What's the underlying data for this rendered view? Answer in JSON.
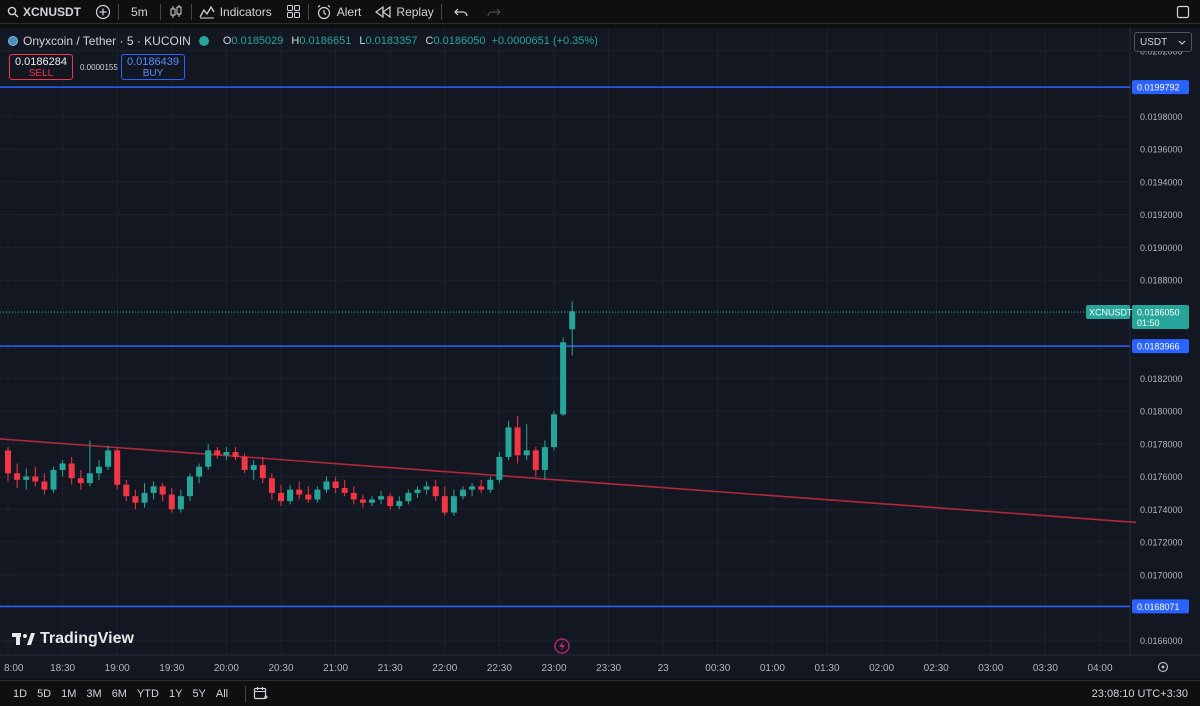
{
  "toolbar": {
    "symbol": "XCNUSDT",
    "interval": "5m",
    "indicators_label": "Indicators",
    "alert_label": "Alert",
    "replay_label": "Replay"
  },
  "legend": {
    "title": "Onyxcoin / Tether · 5 · KUCOIN",
    "open_key": "O",
    "open": "0.0185029",
    "high_key": "H",
    "high": "0.0186651",
    "low_key": "L",
    "low": "0.0183357",
    "close_key": "C",
    "close": "0.0186050",
    "change": "+0.0000651 (+0.35%)"
  },
  "trade": {
    "sell_price": "0.0186284",
    "sell_label": "SELL",
    "spread": "0.0000155",
    "buy_price": "0.0186439",
    "buy_label": "BUY"
  },
  "currency": {
    "selected": "USDT"
  },
  "brand": {
    "name": "TradingView"
  },
  "bottom": {
    "ranges": [
      "1D",
      "5D",
      "1M",
      "3M",
      "6M",
      "YTD",
      "1Y",
      "5Y",
      "All"
    ],
    "clock": "23:08:10 UTC+3:30"
  },
  "colors": {
    "up": "#26a69a",
    "down": "#f23645",
    "level": "#2962ff",
    "trend": "#b2283b",
    "bg": "#131722"
  },
  "chart_data": {
    "type": "candlestick",
    "symbol": "XCNUSDT",
    "y_ticks": [
      0.0166,
      0.0168,
      0.017,
      0.0172,
      0.0174,
      0.0176,
      0.0178,
      0.018,
      0.0182,
      0.0184,
      0.0186,
      0.0188,
      0.019,
      0.0192,
      0.0194,
      0.0196,
      0.0198,
      0.0202
    ],
    "y_tick_labels": [
      "0.0166000",
      "0.0168000",
      "0.0170000",
      "0.0172000",
      "0.0174000",
      "0.0176000",
      "0.0178000",
      "0.0180000",
      "0.0182000",
      "0.0184000",
      "0.0186000",
      "0.0188000",
      "0.0190000",
      "0.0192000",
      "0.0194000",
      "0.0196000",
      "0.0198000",
      "0.0202000"
    ],
    "ylim": [
      0.01651,
      0.02034
    ],
    "x_tick_labels": [
      "8:00",
      "18:30",
      "19:00",
      "19:30",
      "20:00",
      "20:30",
      "21:00",
      "21:30",
      "22:00",
      "22:30",
      "23:00",
      "23:30",
      "23",
      "00:30",
      "01:00",
      "01:30",
      "02:00",
      "02:30",
      "03:00",
      "03:30",
      "04:00"
    ],
    "x_tick_minutes": [
      0,
      30,
      60,
      90,
      120,
      150,
      180,
      210,
      240,
      270,
      300,
      330,
      360,
      390,
      420,
      450,
      480,
      510,
      540,
      570,
      600
    ],
    "horizontal_levels": [
      {
        "price": 0.0199792,
        "label": "0.0199792"
      },
      {
        "price": 0.0183966,
        "label": "0.0183966"
      },
      {
        "price": 0.0168071,
        "label": "0.0168071"
      }
    ],
    "current_price": {
      "symbol": "XCNUSDT",
      "price": 0.018605,
      "label": "0.0186050",
      "countdown": "01:50"
    },
    "trendline": {
      "from": {
        "minute": -5,
        "price": 0.01783
      },
      "to": {
        "minute": 620,
        "price": 0.01732
      }
    },
    "candles": [
      {
        "m": 0,
        "o": 0.01776,
        "h": 0.01778,
        "l": 0.01757,
        "c": 0.01762
      },
      {
        "m": 5,
        "o": 0.01762,
        "h": 0.01768,
        "l": 0.01753,
        "c": 0.01758
      },
      {
        "m": 10,
        "o": 0.01758,
        "h": 0.01765,
        "l": 0.01752,
        "c": 0.0176
      },
      {
        "m": 15,
        "o": 0.0176,
        "h": 0.01766,
        "l": 0.01754,
        "c": 0.01757
      },
      {
        "m": 20,
        "o": 0.01757,
        "h": 0.01762,
        "l": 0.01749,
        "c": 0.01752
      },
      {
        "m": 25,
        "o": 0.01752,
        "h": 0.01766,
        "l": 0.0175,
        "c": 0.01764
      },
      {
        "m": 30,
        "o": 0.01764,
        "h": 0.0177,
        "l": 0.0176,
        "c": 0.01768
      },
      {
        "m": 35,
        "o": 0.01768,
        "h": 0.01772,
        "l": 0.01755,
        "c": 0.01759
      },
      {
        "m": 40,
        "o": 0.01759,
        "h": 0.01764,
        "l": 0.01752,
        "c": 0.01756
      },
      {
        "m": 45,
        "o": 0.01756,
        "h": 0.01782,
        "l": 0.01754,
        "c": 0.01762
      },
      {
        "m": 50,
        "o": 0.01762,
        "h": 0.0177,
        "l": 0.01758,
        "c": 0.01766
      },
      {
        "m": 55,
        "o": 0.01766,
        "h": 0.01779,
        "l": 0.01764,
        "c": 0.01776
      },
      {
        "m": 60,
        "o": 0.01776,
        "h": 0.01778,
        "l": 0.01752,
        "c": 0.01755
      },
      {
        "m": 65,
        "o": 0.01755,
        "h": 0.01758,
        "l": 0.01745,
        "c": 0.01748
      },
      {
        "m": 70,
        "o": 0.01748,
        "h": 0.01752,
        "l": 0.0174,
        "c": 0.01744
      },
      {
        "m": 75,
        "o": 0.01744,
        "h": 0.01756,
        "l": 0.01741,
        "c": 0.0175
      },
      {
        "m": 80,
        "o": 0.0175,
        "h": 0.01757,
        "l": 0.01746,
        "c": 0.01754
      },
      {
        "m": 85,
        "o": 0.01754,
        "h": 0.01756,
        "l": 0.01745,
        "c": 0.01749
      },
      {
        "m": 90,
        "o": 0.01749,
        "h": 0.01753,
        "l": 0.01738,
        "c": 0.0174
      },
      {
        "m": 95,
        "o": 0.0174,
        "h": 0.01752,
        "l": 0.01738,
        "c": 0.01748
      },
      {
        "m": 100,
        "o": 0.01748,
        "h": 0.01762,
        "l": 0.01745,
        "c": 0.0176
      },
      {
        "m": 105,
        "o": 0.0176,
        "h": 0.01768,
        "l": 0.01756,
        "c": 0.01766
      },
      {
        "m": 110,
        "o": 0.01766,
        "h": 0.0178,
        "l": 0.01764,
        "c": 0.01776
      },
      {
        "m": 115,
        "o": 0.01776,
        "h": 0.01778,
        "l": 0.01771,
        "c": 0.01773
      },
      {
        "m": 120,
        "o": 0.01773,
        "h": 0.01778,
        "l": 0.0177,
        "c": 0.01775
      },
      {
        "m": 125,
        "o": 0.01775,
        "h": 0.01778,
        "l": 0.0177,
        "c": 0.01772
      },
      {
        "m": 130,
        "o": 0.01772,
        "h": 0.01774,
        "l": 0.01762,
        "c": 0.01764
      },
      {
        "m": 135,
        "o": 0.01764,
        "h": 0.0177,
        "l": 0.01758,
        "c": 0.01767
      },
      {
        "m": 140,
        "o": 0.01767,
        "h": 0.01772,
        "l": 0.01756,
        "c": 0.01759
      },
      {
        "m": 145,
        "o": 0.01759,
        "h": 0.01762,
        "l": 0.01746,
        "c": 0.0175
      },
      {
        "m": 150,
        "o": 0.0175,
        "h": 0.01755,
        "l": 0.01742,
        "c": 0.01745
      },
      {
        "m": 155,
        "o": 0.01745,
        "h": 0.01755,
        "l": 0.01743,
        "c": 0.01752
      },
      {
        "m": 160,
        "o": 0.01752,
        "h": 0.01757,
        "l": 0.01746,
        "c": 0.01749
      },
      {
        "m": 165,
        "o": 0.01749,
        "h": 0.01754,
        "l": 0.01744,
        "c": 0.01746
      },
      {
        "m": 170,
        "o": 0.01746,
        "h": 0.01754,
        "l": 0.01744,
        "c": 0.01752
      },
      {
        "m": 175,
        "o": 0.01752,
        "h": 0.0176,
        "l": 0.0175,
        "c": 0.01757
      },
      {
        "m": 180,
        "o": 0.01757,
        "h": 0.0176,
        "l": 0.0175,
        "c": 0.01753
      },
      {
        "m": 185,
        "o": 0.01753,
        "h": 0.01758,
        "l": 0.01748,
        "c": 0.0175
      },
      {
        "m": 190,
        "o": 0.0175,
        "h": 0.01754,
        "l": 0.01743,
        "c": 0.01746
      },
      {
        "m": 195,
        "o": 0.01746,
        "h": 0.01749,
        "l": 0.01741,
        "c": 0.01744
      },
      {
        "m": 200,
        "o": 0.01744,
        "h": 0.01748,
        "l": 0.01742,
        "c": 0.01746
      },
      {
        "m": 205,
        "o": 0.01746,
        "h": 0.01751,
        "l": 0.01743,
        "c": 0.01748
      },
      {
        "m": 210,
        "o": 0.01748,
        "h": 0.0175,
        "l": 0.0174,
        "c": 0.01742
      },
      {
        "m": 215,
        "o": 0.01742,
        "h": 0.01748,
        "l": 0.0174,
        "c": 0.01745
      },
      {
        "m": 220,
        "o": 0.01745,
        "h": 0.01752,
        "l": 0.01743,
        "c": 0.0175
      },
      {
        "m": 225,
        "o": 0.0175,
        "h": 0.01754,
        "l": 0.01747,
        "c": 0.01752
      },
      {
        "m": 230,
        "o": 0.01752,
        "h": 0.01757,
        "l": 0.01749,
        "c": 0.01754
      },
      {
        "m": 235,
        "o": 0.01754,
        "h": 0.01758,
        "l": 0.01745,
        "c": 0.01748
      },
      {
        "m": 240,
        "o": 0.01748,
        "h": 0.01754,
        "l": 0.01736,
        "c": 0.01738
      },
      {
        "m": 245,
        "o": 0.01738,
        "h": 0.01752,
        "l": 0.01736,
        "c": 0.01748
      },
      {
        "m": 250,
        "o": 0.01748,
        "h": 0.01754,
        "l": 0.01746,
        "c": 0.01752
      },
      {
        "m": 255,
        "o": 0.01752,
        "h": 0.01756,
        "l": 0.01748,
        "c": 0.01754
      },
      {
        "m": 260,
        "o": 0.01754,
        "h": 0.01758,
        "l": 0.0175,
        "c": 0.01752
      },
      {
        "m": 265,
        "o": 0.01752,
        "h": 0.0176,
        "l": 0.0175,
        "c": 0.01758
      },
      {
        "m": 270,
        "o": 0.01758,
        "h": 0.01775,
        "l": 0.01756,
        "c": 0.01772
      },
      {
        "m": 275,
        "o": 0.01772,
        "h": 0.01794,
        "l": 0.0177,
        "c": 0.0179
      },
      {
        "m": 280,
        "o": 0.0179,
        "h": 0.01797,
        "l": 0.01768,
        "c": 0.01773
      },
      {
        "m": 285,
        "o": 0.01773,
        "h": 0.01792,
        "l": 0.0177,
        "c": 0.01776
      },
      {
        "m": 290,
        "o": 0.01776,
        "h": 0.01778,
        "l": 0.0176,
        "c": 0.01764
      },
      {
        "m": 295,
        "o": 0.01764,
        "h": 0.01782,
        "l": 0.01758,
        "c": 0.01778
      },
      {
        "m": 300,
        "o": 0.01778,
        "h": 0.018,
        "l": 0.01776,
        "c": 0.01798
      },
      {
        "m": 305,
        "o": 0.01798,
        "h": 0.01845,
        "l": 0.01797,
        "c": 0.01842
      },
      {
        "m": 310,
        "o": 0.0185,
        "h": 0.01867,
        "l": 0.01834,
        "c": 0.01861
      }
    ]
  }
}
